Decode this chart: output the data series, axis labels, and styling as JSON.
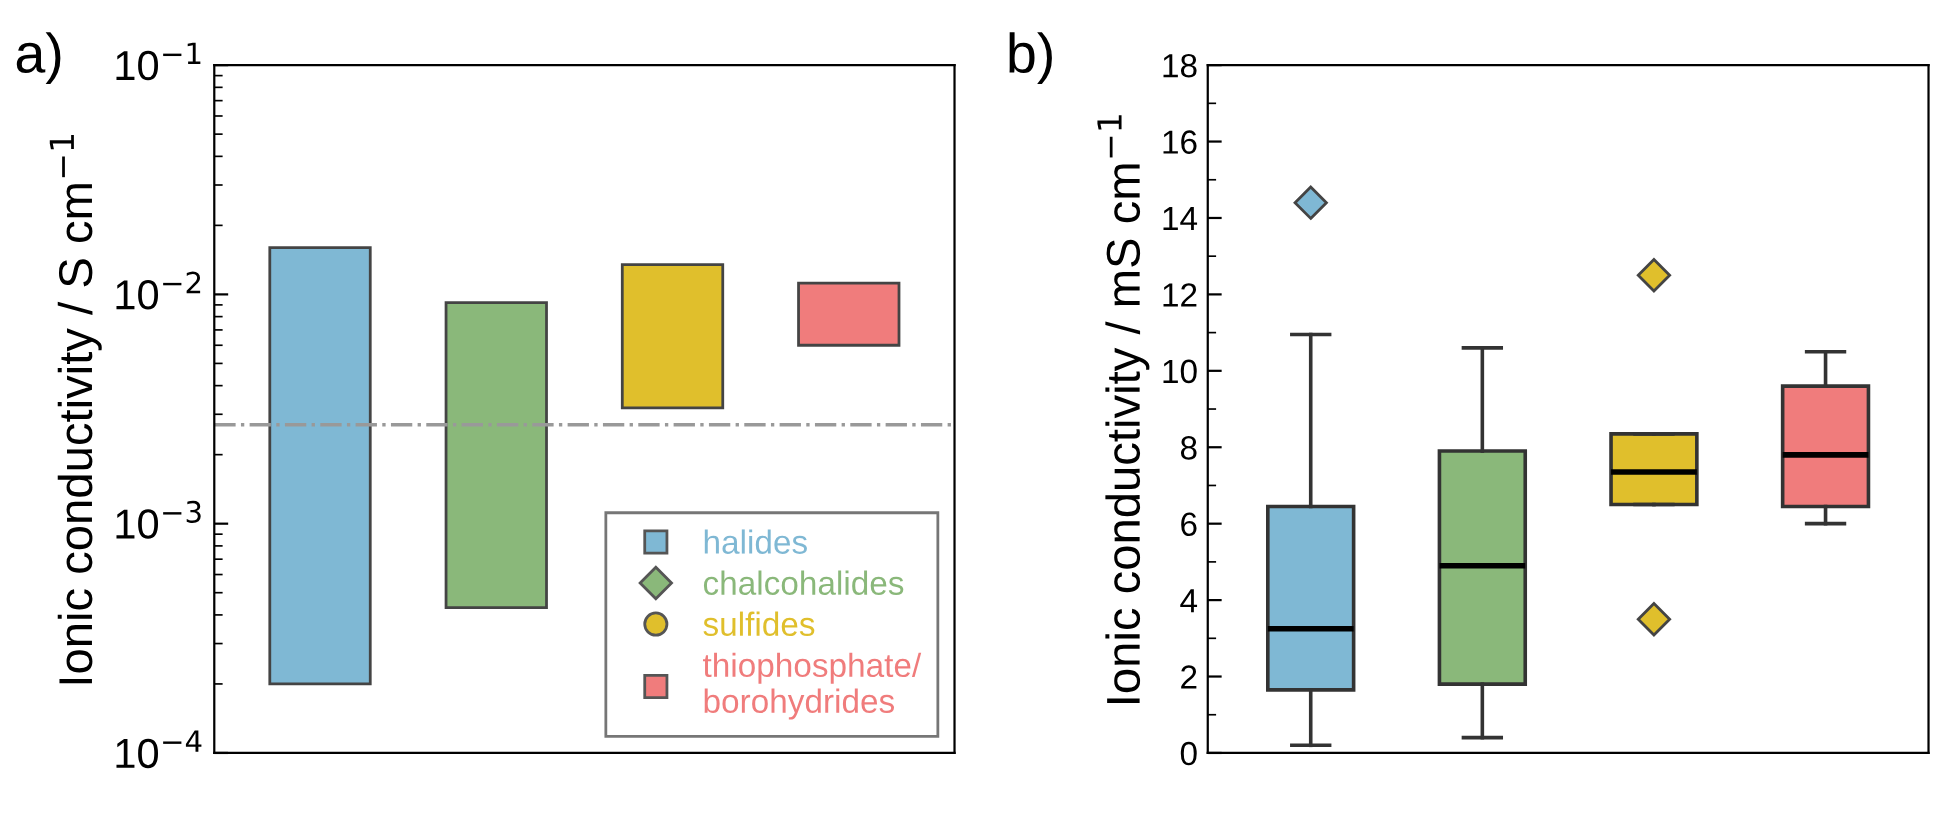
{
  "chart_data": [
    {
      "type": "bar",
      "title": "a)",
      "ylabel": "Ionic conductivity / S cm$^{−1}$",
      "categories": [
        null,
        null,
        null,
        null
      ],
      "log": "y",
      "ylim": [
        0.0001,
        0.1
      ],
      "yticks": [
        {
          "value": 0.0001,
          "label": "10$^{−4}$"
        },
        {
          "value": 0.001,
          "label": "10$^{−3}$"
        },
        {
          "value": 0.01,
          "label": "10$^{−2}$"
        },
        {
          "value": 0.1,
          "label": "10$^{−1}$"
        }
      ],
      "series": [
        {
          "name": "halides",
          "color": "#7fb8d4",
          "marker": "square",
          "values": [
            0.0158,
            null,
            null,
            null
          ],
          "base": [
            0.0002,
            null,
            null,
            null
          ]
        },
        {
          "name": "chalcohalides",
          "color": "#8ab87a",
          "marker": "diamond",
          "values": [
            null,
            0.00877,
            null,
            null
          ],
          "base": [
            null,
            0.00043,
            null,
            null
          ]
        },
        {
          "name": "sulfides",
          "color": "#e0bf2c",
          "marker": "circle",
          "values": [
            null,
            null,
            0.0103,
            null
          ],
          "base": [
            null,
            null,
            0.0032,
            null
          ]
        },
        {
          "name": "thiophosphate/\nborohydrides",
          "color": "#f07c7c",
          "marker": "square",
          "values": [
            null,
            null,
            null,
            0.0052
          ],
          "base": [
            null,
            null,
            null,
            0.006
          ]
        }
      ],
      "ref_lines": [
        {
          "axis": "y",
          "value": 0.0027,
          "color": "#999999",
          "line_style": "dashdot"
        }
      ],
      "legend": "bottom right"
    },
    {
      "type": "box",
      "title": "b)",
      "ylabel": "Ionic conductivity / mS cm$^{−1}$",
      "categories": [
        null,
        null,
        null,
        null
      ],
      "marker": "diamond",
      "ylim": [
        0,
        18
      ],
      "yticks": [
        0,
        2,
        4,
        6,
        8,
        10,
        12,
        14,
        16,
        18
      ],
      "colors": [
        "#7fb8d4",
        "#8ab87a",
        "#e0bf2c",
        "#f07c7c"
      ],
      "boxes": [
        {
          "low": 0.2,
          "q1": 1.65,
          "median": 3.25,
          "q3": 6.45,
          "high": 10.95,
          "outliers": [
            14.4
          ]
        },
        {
          "low": 0.4,
          "q1": 1.8,
          "median": 4.9,
          "q3": 7.9,
          "high": 10.6
        },
        {
          "low": 6.5,
          "q1": 6.5,
          "median": 7.35,
          "q3": 8.35,
          "high": 8.35,
          "outliers": [
            3.5,
            12.5
          ]
        },
        {
          "low": 6.0,
          "q1": 6.45,
          "median": 7.8,
          "q3": 9.6,
          "high": 10.5
        }
      ]
    }
  ]
}
